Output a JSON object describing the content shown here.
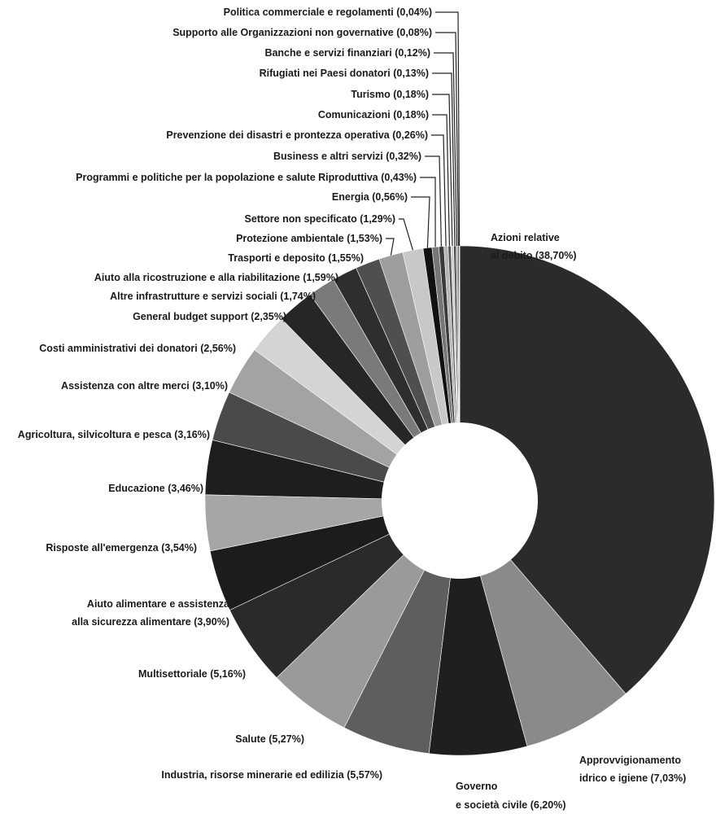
{
  "chart_data": {
    "type": "pie",
    "donut": true,
    "title": "",
    "start_direction": "clockwise from 12 o'clock",
    "slices": [
      {
        "label": "Azioni relative al debito",
        "label_lines": [
          "Azioni relative",
          "al debito (38,70%)"
        ],
        "value": 38.7,
        "color": "#2b2b2b"
      },
      {
        "label": "Approvvigionamento idrico e igiene",
        "label_lines": [
          "Approvvigionamento",
          "idrico e igiene (7,03%)"
        ],
        "value": 7.03,
        "color": "#8a8a8a"
      },
      {
        "label": "Governo e società civile",
        "label_lines": [
          "Governo",
          "e società civile (6,20%)"
        ],
        "value": 6.2,
        "color": "#1f1f1f"
      },
      {
        "label": "Industria, risorse minerarie ed edilizia",
        "label_lines": [
          "Industria, risorse minerarie ed edilizia (5,57%)"
        ],
        "value": 5.57,
        "color": "#5e5e5e"
      },
      {
        "label": "Salute",
        "label_lines": [
          "Salute (5,27%)"
        ],
        "value": 5.27,
        "color": "#9a9a9a"
      },
      {
        "label": "Multisettoriale",
        "label_lines": [
          "Multisettoriale (5,16%)"
        ],
        "value": 5.16,
        "color": "#2a2a2a"
      },
      {
        "label": "Aiuto alimentare e assistenza alla sicurezza alimentare",
        "label_lines": [
          "Aiuto alimentare e assistenza",
          "alla sicurezza alimentare (3,90%)"
        ],
        "value": 3.9,
        "color": "#1c1c1c"
      },
      {
        "label": "Risposte all'emergenza",
        "label_lines": [
          "Risposte all'emergenza (3,54%)"
        ],
        "value": 3.54,
        "color": "#a6a6a6"
      },
      {
        "label": "Educazione",
        "label_lines": [
          "Educazione (3,46%)"
        ],
        "value": 3.46,
        "color": "#1e1e1e"
      },
      {
        "label": "Agricoltura, silvicoltura e pesca",
        "label_lines": [
          "Agricoltura, silvicoltura e pesca (3,16%)"
        ],
        "value": 3.16,
        "color": "#4a4a4a"
      },
      {
        "label": "Assistenza con altre merci",
        "label_lines": [
          "Assistenza con altre merci (3,10%)"
        ],
        "value": 3.1,
        "color": "#a3a3a3"
      },
      {
        "label": "Costi amministrativi dei donatori",
        "label_lines": [
          "Costi amministrativi dei donatori (2,56%)"
        ],
        "value": 2.56,
        "color": "#d4d4d4"
      },
      {
        "label": "General budget support",
        "label_lines": [
          "General budget support (2,35%)"
        ],
        "value": 2.35,
        "color": "#262626"
      },
      {
        "label": "Altre infrastrutture e servizi sociali",
        "label_lines": [
          "Altre infrastrutture e servizi sociali (1,74%)"
        ],
        "value": 1.74,
        "color": "#7a7a7a"
      },
      {
        "label": "Aiuto alla ricostruzione e alla riabilitazione",
        "label_lines": [
          "Aiuto alla ricostruzione e alla riabilitazione (1,59%)"
        ],
        "value": 1.59,
        "color": "#2e2e2e"
      },
      {
        "label": "Trasporti e deposito",
        "label_lines": [
          "Trasporti e deposito (1,55%)"
        ],
        "value": 1.55,
        "color": "#4f4f4f"
      },
      {
        "label": "Protezione ambientale",
        "label_lines": [
          "Protezione ambientale (1,53%)"
        ],
        "value": 1.53,
        "color": "#9e9e9e"
      },
      {
        "label": "Settore non specificato",
        "label_lines": [
          "Settore non specificato (1,29%)"
        ],
        "value": 1.29,
        "color": "#c8c8c8"
      },
      {
        "label": "Energia",
        "label_lines": [
          "Energia (0,56%)"
        ],
        "value": 0.56,
        "color": "#111111"
      },
      {
        "label": "Programmi e politiche per la popolazione e salute Riproduttiva",
        "label_lines": [
          "Programmi e politiche per la popolazione e salute Riproduttiva (0,43%)"
        ],
        "value": 0.43,
        "color": "#777777"
      },
      {
        "label": "Business e altri servizi",
        "label_lines": [
          "Business e altri servizi (0,32%)"
        ],
        "value": 0.32,
        "color": "#3a3a3a"
      },
      {
        "label": "Prevenzione dei disastri e prontezza operativa",
        "label_lines": [
          "Prevenzione dei disastri e prontezza operativa (0,26%)"
        ],
        "value": 0.26,
        "color": "#b5b5b5"
      },
      {
        "label": "Comunicazioni",
        "label_lines": [
          "Comunicazioni (0,18%)"
        ],
        "value": 0.18,
        "color": "#555555"
      },
      {
        "label": "Turismo",
        "label_lines": [
          "Turismo (0,18%)"
        ],
        "value": 0.18,
        "color": "#cfcfcf"
      },
      {
        "label": "Rifugiati nei Paesi donatori",
        "label_lines": [
          "Rifugiati nei Paesi donatori (0,13%)"
        ],
        "value": 0.13,
        "color": "#333333"
      },
      {
        "label": "Banche e servizi finanziari",
        "label_lines": [
          "Banche e servizi finanziari (0,12%)"
        ],
        "value": 0.12,
        "color": "#999999"
      },
      {
        "label": "Supporto alle Organizzazioni non governative",
        "label_lines": [
          "Supporto alle Organizzazioni non governative (0,08%)"
        ],
        "value": 0.08,
        "color": "#444444"
      },
      {
        "label": "Politica commerciale e regolamenti",
        "label_lines": [
          "Politica commerciale e regolamenti (0,04%)"
        ],
        "value": 0.04,
        "color": "#bbbbbb"
      }
    ]
  }
}
